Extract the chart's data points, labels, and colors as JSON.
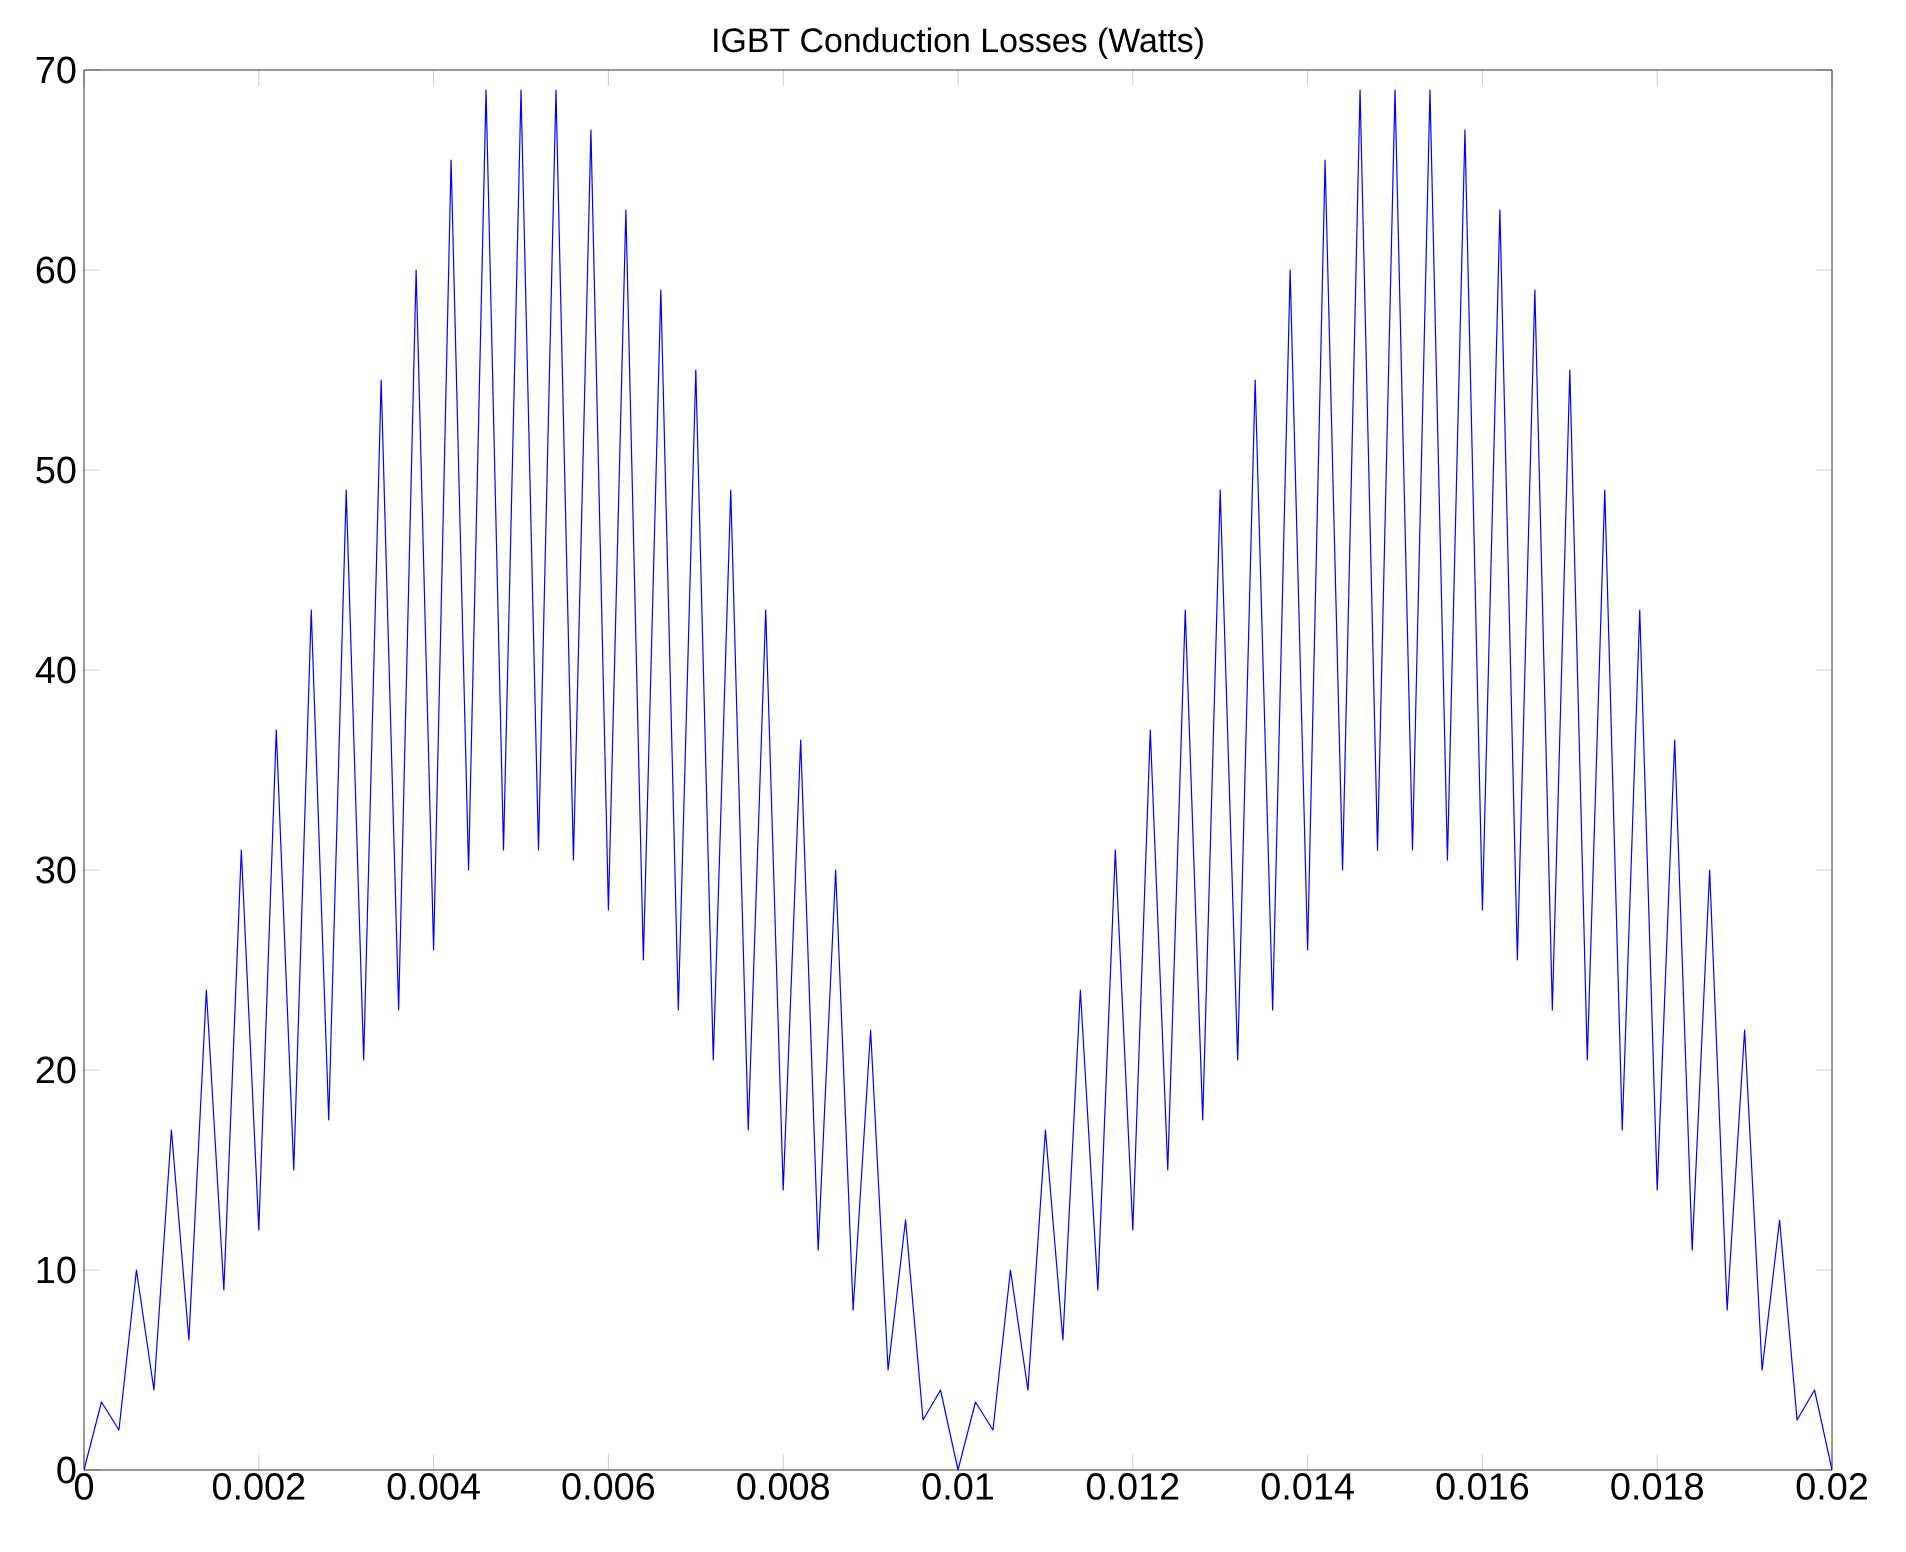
{
  "chart_data": {
    "type": "line",
    "title": "IGBT Conduction Losses (Watts)",
    "x": [
      0,
      0.0002,
      0.0004,
      0.0006,
      0.0008,
      0.001,
      0.0012,
      0.0014,
      0.0016,
      0.0018,
      0.002,
      0.0022,
      0.0024,
      0.0026,
      0.0028,
      0.003,
      0.0032,
      0.0034,
      0.0036,
      0.0038,
      0.004,
      0.0042,
      0.0044,
      0.0046,
      0.0048,
      0.005,
      0.0052,
      0.0054,
      0.0056,
      0.0058,
      0.006,
      0.0062,
      0.0064,
      0.0066,
      0.0068,
      0.007,
      0.0072,
      0.0074,
      0.0076,
      0.0078,
      0.008,
      0.0082,
      0.0084,
      0.0086,
      0.0088,
      0.009,
      0.0092,
      0.0094,
      0.0096,
      0.0098,
      0.01,
      0.0102,
      0.0104,
      0.0106,
      0.0108,
      0.011,
      0.0112,
      0.0114,
      0.0116,
      0.0118,
      0.012,
      0.0122,
      0.0124,
      0.0126,
      0.0128,
      0.013,
      0.0132,
      0.0134,
      0.0136,
      0.0138,
      0.014,
      0.0142,
      0.0144,
      0.0146,
      0.0148,
      0.015,
      0.0152,
      0.0154,
      0.0156,
      0.0158,
      0.016,
      0.0162,
      0.0164,
      0.0166,
      0.0168,
      0.017,
      0.0172,
      0.0174,
      0.0176,
      0.0178,
      0.018,
      0.0182,
      0.0184,
      0.0186,
      0.0188,
      0.019,
      0.0192,
      0.0194,
      0.0196,
      0.0198,
      0.02
    ],
    "series": [
      {
        "color": "#0000ff",
        "values": [
          0,
          3.4,
          2,
          10,
          4,
          17,
          6.5,
          24,
          9,
          31,
          12,
          37,
          15,
          43,
          17.5,
          49,
          20.5,
          54.5,
          23,
          60,
          26,
          65.5,
          30,
          69,
          31,
          69,
          31,
          69,
          30.5,
          67,
          28,
          63,
          25.5,
          59,
          23,
          55,
          20.5,
          49,
          17,
          43,
          14,
          36.5,
          11,
          30,
          8,
          22,
          5,
          12.5,
          2.5,
          4,
          0,
          3.4,
          2,
          10,
          4,
          17,
          6.5,
          24,
          9,
          31,
          12,
          37,
          15,
          43,
          17.5,
          49,
          20.5,
          54.5,
          23,
          60,
          26,
          65.5,
          30,
          69,
          31,
          69,
          31,
          69,
          30.5,
          67,
          28,
          63,
          25.5,
          59,
          23,
          55,
          20.5,
          49,
          17,
          43,
          14,
          36.5,
          11,
          30,
          8,
          22,
          5,
          12.5,
          2.5,
          4,
          0
        ]
      }
    ],
    "xlim": [
      0,
      0.02
    ],
    "ylim": [
      0,
      70
    ],
    "xticks": [
      0,
      0.002,
      0.004,
      0.006,
      0.008,
      0.01,
      0.012,
      0.014,
      0.016,
      0.018,
      0.02
    ],
    "yticks": [
      0,
      10,
      20,
      30,
      40,
      50,
      60,
      70
    ],
    "grid": false,
    "marker": "none",
    "line_style": "solid"
  }
}
